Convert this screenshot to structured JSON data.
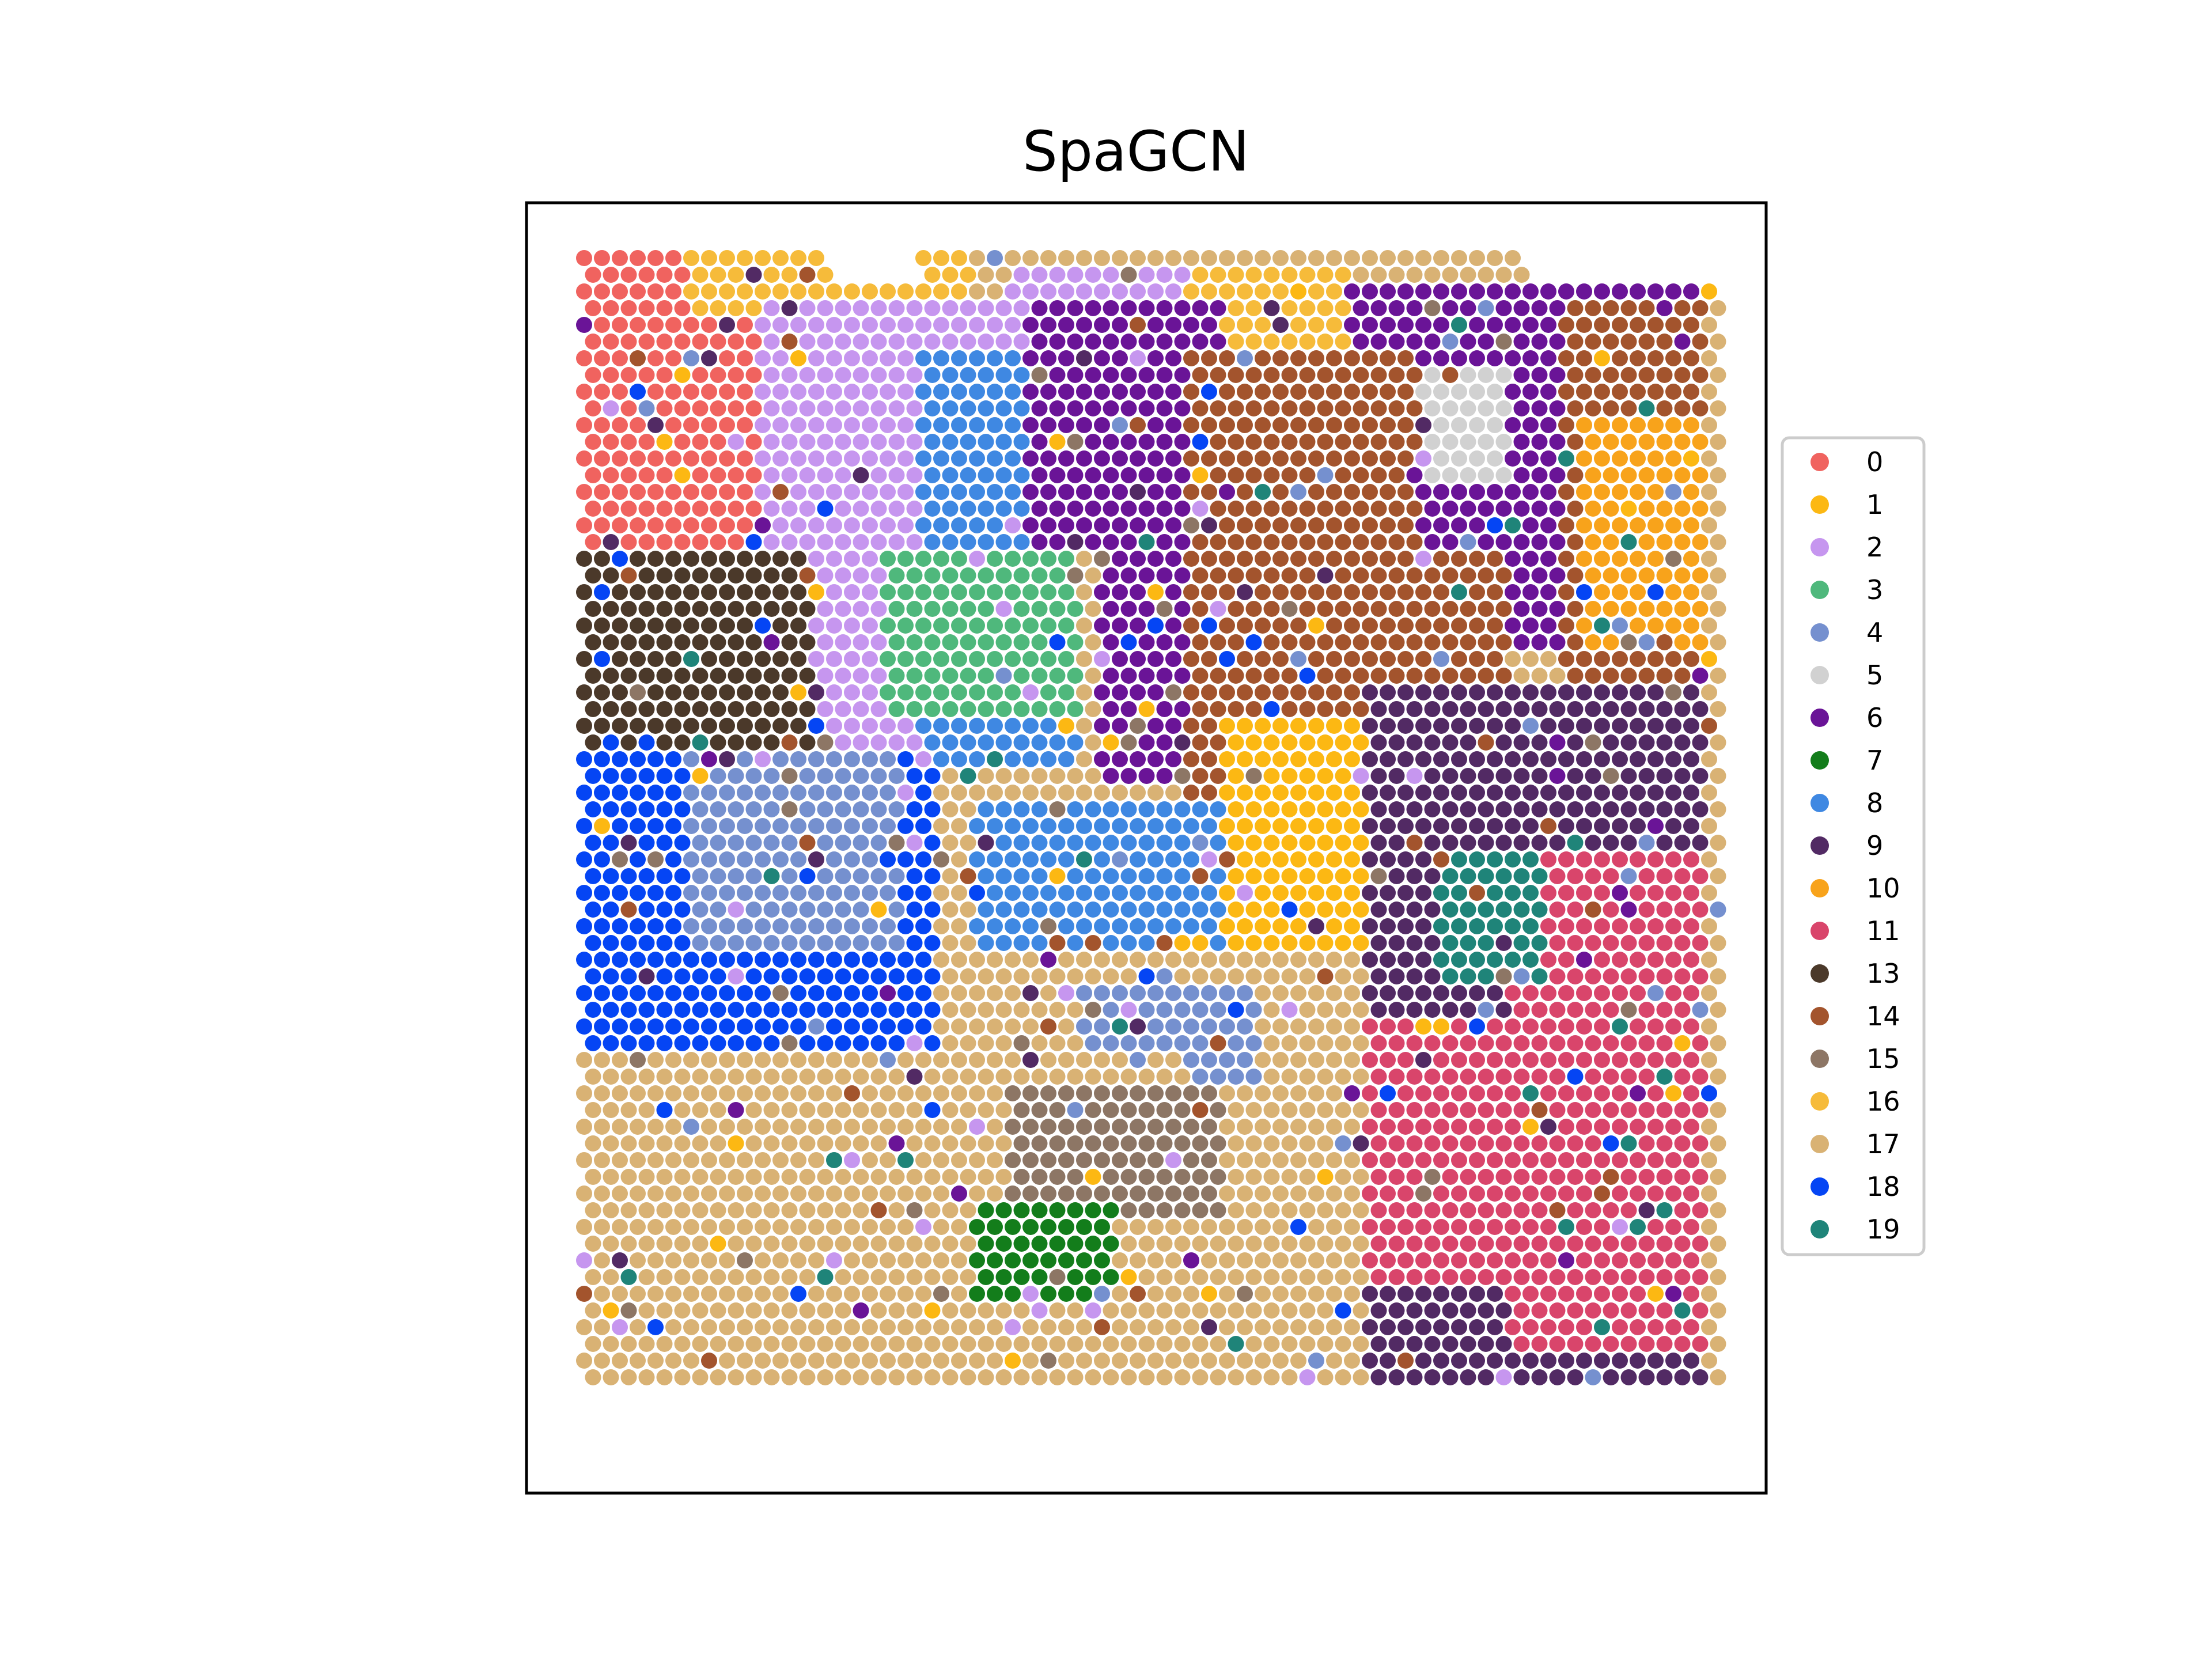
{
  "chart_data": {
    "type": "scatter",
    "title": "SpaGCN",
    "xlabel": "",
    "ylabel": "",
    "grid": false,
    "legend_position": "right",
    "colors": {
      "0": "#f0635f",
      "1": "#fcb813",
      "2": "#c696ef",
      "3": "#4fb87c",
      "4": "#7590cf",
      "5": "#d1d1d1",
      "6": "#6a1497",
      "7": "#137d1b",
      "8": "#3f88e2",
      "9": "#522a64",
      "10": "#f8a31b",
      "11": "#d9456b",
      "13": "#4b392a",
      "14": "#a3542d",
      "15": "#8d7665",
      "16": "#f6bb3a",
      "17": "#d9b274",
      "18": "#0545f4",
      "19": "#1f8479"
    },
    "series": [
      {
        "name": "0"
      },
      {
        "name": "1"
      },
      {
        "name": "2"
      },
      {
        "name": "3"
      },
      {
        "name": "4"
      },
      {
        "name": "5"
      },
      {
        "name": "6"
      },
      {
        "name": "7"
      },
      {
        "name": "8"
      },
      {
        "name": "9"
      },
      {
        "name": "10"
      },
      {
        "name": "11"
      },
      {
        "name": "13"
      },
      {
        "name": "14"
      },
      {
        "name": "15"
      },
      {
        "name": "16"
      },
      {
        "name": "17"
      },
      {
        "name": "18"
      },
      {
        "name": "19"
      }
    ],
    "grid_size": {
      "columns": 64,
      "rows": 68
    },
    "regions": [
      {
        "cluster": "0",
        "x": [
          0,
          12
        ],
        "y": [
          0,
          18
        ]
      },
      {
        "cluster": "16",
        "x": [
          6,
          22
        ],
        "y": [
          0,
          4
        ]
      },
      {
        "cluster": "16",
        "x": [
          34,
          43
        ],
        "y": [
          1,
          7
        ]
      },
      {
        "cluster": "2",
        "x": [
          10,
          24
        ],
        "y": [
          3,
          30
        ]
      },
      {
        "cluster": "2",
        "x": [
          24,
          34
        ],
        "y": [
          1,
          6
        ]
      },
      {
        "cluster": "8",
        "x": [
          19,
          28
        ],
        "y": [
          6,
          31
        ]
      },
      {
        "cluster": "8",
        "x": [
          22,
          37
        ],
        "y": [
          33,
          42
        ]
      },
      {
        "cluster": "3",
        "x": [
          17,
          28
        ],
        "y": [
          18,
          28
        ]
      },
      {
        "cluster": "6",
        "x": [
          25,
          36
        ],
        "y": [
          3,
          18
        ]
      },
      {
        "cluster": "6",
        "x": [
          29,
          37
        ],
        "y": [
          18,
          32
        ]
      },
      {
        "cluster": "6",
        "x": [
          43,
          55
        ],
        "y": [
          2,
          24
        ]
      },
      {
        "cluster": "6",
        "x": [
          53,
          63
        ],
        "y": [
          2,
          12
        ]
      },
      {
        "cluster": "6",
        "x": [
          51,
          58
        ],
        "y": [
          27,
          32
        ]
      },
      {
        "cluster": "5",
        "x": [
          45,
          52
        ],
        "y": [
          7,
          14
        ]
      },
      {
        "cluster": "14",
        "x": [
          34,
          47
        ],
        "y": [
          6,
          33
        ]
      },
      {
        "cluster": "14",
        "x": [
          40,
          52
        ],
        "y": [
          18,
          32
        ]
      },
      {
        "cluster": "14",
        "x": [
          55,
          63
        ],
        "y": [
          3,
          26
        ]
      },
      {
        "cluster": "1",
        "x": [
          36,
          47
        ],
        "y": [
          28,
          42
        ]
      },
      {
        "cluster": "1",
        "x": [
          46,
          53
        ],
        "y": [
          26,
          35
        ]
      },
      {
        "cluster": "10",
        "x": [
          56,
          63
        ],
        "y": [
          10,
          24
        ]
      },
      {
        "cluster": "13",
        "x": [
          0,
          13
        ],
        "y": [
          18,
          32
        ]
      },
      {
        "cluster": "18",
        "x": [
          0,
          20
        ],
        "y": [
          30,
          60
        ]
      },
      {
        "cluster": "18",
        "x": [
          0,
          5
        ],
        "y": [
          60,
          68
        ]
      },
      {
        "cluster": "4",
        "x": [
          6,
          18
        ],
        "y": [
          30,
          42
        ]
      },
      {
        "cluster": "4",
        "x": [
          28,
          38
        ],
        "y": [
          44,
          52
        ]
      },
      {
        "cluster": "17",
        "x": [
          0,
          34
        ],
        "y": [
          48,
          68
        ]
      },
      {
        "cluster": "17",
        "x": [
          33,
          52
        ],
        "y": [
          50,
          68
        ]
      },
      {
        "cluster": "15",
        "x": [
          24,
          36
        ],
        "y": [
          50,
          58
        ]
      },
      {
        "cluster": "7",
        "x": [
          22,
          30
        ],
        "y": [
          57,
          63
        ]
      },
      {
        "cluster": "9",
        "x": [
          44,
          63
        ],
        "y": [
          26,
          68
        ]
      },
      {
        "cluster": "11",
        "x": [
          52,
          63
        ],
        "y": [
          36,
          66
        ]
      },
      {
        "cluster": "11",
        "x": [
          44,
          56
        ],
        "y": [
          46,
          62
        ]
      },
      {
        "cluster": "19",
        "x": [
          48,
          54
        ],
        "y": [
          36,
          44
        ]
      }
    ]
  }
}
